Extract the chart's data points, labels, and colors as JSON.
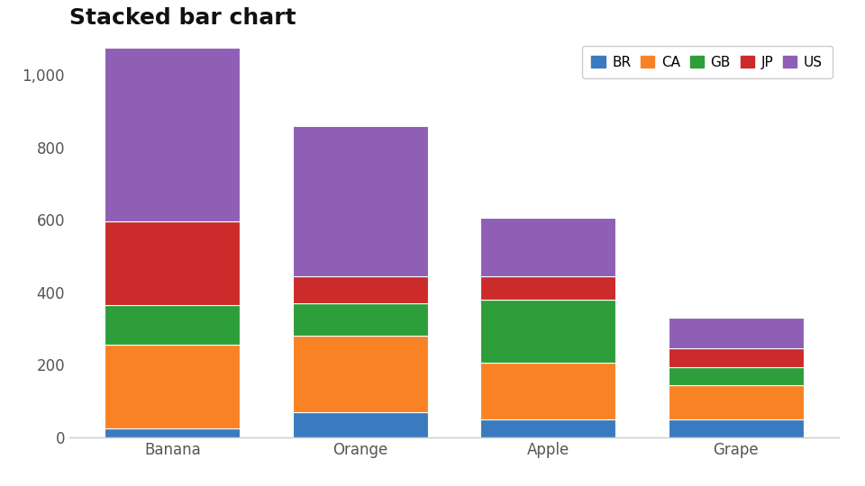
{
  "title": "Stacked bar chart",
  "categories": [
    "Banana",
    "Orange",
    "Apple",
    "Grape"
  ],
  "series": {
    "BR": [
      25,
      70,
      50,
      50
    ],
    "CA": [
      230,
      210,
      155,
      95
    ],
    "GB": [
      110,
      90,
      175,
      50
    ],
    "JP": [
      230,
      75,
      65,
      50
    ],
    "US": [
      480,
      415,
      160,
      85
    ]
  },
  "colors": {
    "BR": "#3a7bbf",
    "CA": "#f98324",
    "GB": "#2d9e3a",
    "JP": "#cc2b2b",
    "US": "#8e5fb5"
  },
  "ylim": [
    0,
    1100
  ],
  "yticks": [
    0,
    200,
    400,
    600,
    800,
    1000
  ],
  "title_fontsize": 18,
  "legend_fontsize": 11,
  "tick_fontsize": 12,
  "background_color": "#ffffff",
  "bar_width": 0.72
}
